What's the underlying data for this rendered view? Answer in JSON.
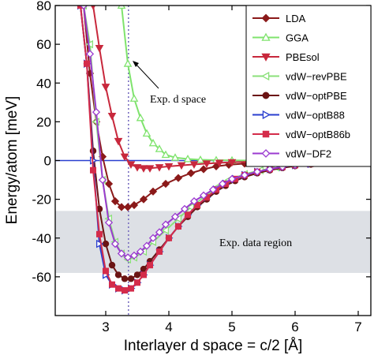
{
  "chart_data": {
    "type": "line",
    "xlabel": "Interlayer d space = c/2 [Å]",
    "ylabel": "Energy/atom [meV]",
    "xlim": [
      2.2,
      7.2
    ],
    "ylim": [
      -80,
      80
    ],
    "xticks": [
      "3",
      "4",
      "5",
      "6",
      "7"
    ],
    "xtick_values": [
      3,
      4,
      5,
      6,
      7
    ],
    "yticks": [
      "80",
      "60",
      "40",
      "20",
      "0",
      "-20",
      "-40",
      "-60"
    ],
    "ytick_values": [
      80,
      60,
      40,
      20,
      0,
      -20,
      -40,
      -60
    ],
    "grid": false,
    "legend_position": "top-right",
    "exp_d_space": 3.36,
    "exp_region": [
      -58,
      -26
    ],
    "annotations": {
      "exp_d_space_label": "Exp. d space",
      "exp_region_label": "Exp. data region"
    },
    "series": [
      {
        "name": "LDA",
        "color": "#8b1a1a",
        "marker": "diamond",
        "x": [
          2.65,
          2.75,
          2.85,
          2.95,
          3.05,
          3.15,
          3.25,
          3.35,
          3.45,
          3.6,
          3.75,
          3.95,
          4.15,
          4.35,
          4.55,
          4.75,
          4.95,
          5.2,
          5.45,
          5.7,
          5.95,
          6.2,
          6.45,
          6.7,
          6.95,
          7.15
        ],
        "y": [
          80,
          45,
          20,
          2,
          -12,
          -21,
          -24,
          -24,
          -23,
          -20,
          -16,
          -12,
          -9,
          -6.5,
          -4.5,
          -3,
          -2.2,
          -1.6,
          -1.1,
          -0.8,
          -0.5,
          -0.3,
          -0.2,
          -0.1,
          -0.05,
          0
        ]
      },
      {
        "name": "GGA",
        "color": "#7fe36d",
        "marker": "triangle-up",
        "x": [
          3.25,
          3.35,
          3.45,
          3.55,
          3.65,
          3.75,
          3.85,
          3.95,
          4.1,
          4.3,
          4.5,
          4.75,
          5.0,
          5.3,
          5.6,
          6.0,
          6.4,
          6.8,
          7.15
        ],
        "y": [
          80,
          50,
          32,
          22,
          14,
          9,
          6,
          3,
          1.5,
          0.8,
          0.4,
          0.2,
          0.1,
          0,
          0,
          0,
          0,
          0,
          0
        ]
      },
      {
        "name": "PBEsol",
        "color": "#c8283c",
        "marker": "triangle-down",
        "x": [
          2.8,
          2.9,
          3.0,
          3.1,
          3.2,
          3.3,
          3.4,
          3.5,
          3.6,
          3.7,
          3.85,
          4.0,
          4.2,
          4.4,
          4.6,
          4.8,
          5.0,
          5.3,
          5.6,
          6.0,
          6.4,
          6.8,
          7.15
        ],
        "y": [
          80,
          58,
          38,
          23,
          10,
          2,
          -2,
          -3.5,
          -4,
          -4,
          -3.5,
          -3,
          -2.5,
          -2,
          -1.6,
          -1.2,
          -0.9,
          -0.6,
          -0.4,
          -0.2,
          -0.1,
          0,
          0
        ]
      },
      {
        "name": "vdW−revPBE",
        "color": "#8be07a",
        "marker": "triangle-left",
        "x": [
          2.65,
          2.75,
          2.85,
          2.95,
          3.05,
          3.15,
          3.25,
          3.35,
          3.45,
          3.6,
          3.75,
          3.95,
          4.15,
          4.35,
          4.55,
          4.75,
          4.95,
          5.2,
          5.45,
          5.7,
          5.95,
          6.2,
          6.45,
          6.7,
          6.95,
          7.15
        ],
        "y": [
          80,
          60,
          20,
          -10,
          -30,
          -42,
          -48,
          -51,
          -50,
          -47,
          -42,
          -36,
          -30,
          -24,
          -19,
          -14,
          -10,
          -7,
          -5,
          -3.5,
          -2.5,
          -1.5,
          -1,
          -0.5,
          -0.3,
          0
        ]
      },
      {
        "name": "vdW−optPBE",
        "color": "#6b1414",
        "marker": "circle",
        "x": [
          2.6,
          2.7,
          2.8,
          2.9,
          3.0,
          3.1,
          3.2,
          3.3,
          3.4,
          3.5,
          3.6,
          3.7,
          3.85,
          4.0,
          4.15,
          4.3,
          4.45,
          4.6,
          4.75,
          4.9,
          5.05,
          5.2,
          5.4,
          5.6,
          5.8,
          6.0,
          6.25,
          6.5,
          6.75,
          7.0,
          7.15
        ],
        "y": [
          80,
          50,
          5,
          -25,
          -43,
          -54,
          -59,
          -61,
          -61,
          -59,
          -56,
          -52,
          -46,
          -40,
          -34,
          -29,
          -24,
          -20,
          -16,
          -13,
          -10.5,
          -8.5,
          -6.5,
          -5,
          -3.8,
          -2.8,
          -2,
          -1.4,
          -0.9,
          -0.5,
          -0.2
        ]
      },
      {
        "name": "vdW−optB88",
        "color": "#2a3fcf",
        "marker": "triangle-right",
        "x": [
          2.6,
          2.7,
          2.8,
          2.9,
          3.0,
          3.1,
          3.2,
          3.3,
          3.4,
          3.5,
          3.6,
          3.7,
          3.85,
          4.0,
          4.15,
          4.3,
          4.45,
          4.6,
          4.75,
          4.9,
          5.05,
          5.2,
          5.4,
          5.6,
          5.8,
          6.0,
          6.25,
          6.5,
          6.75,
          7.0,
          7.15
        ],
        "y": [
          80,
          50,
          0,
          -43,
          -59,
          -64,
          -66,
          -67,
          -66,
          -63,
          -59,
          -54,
          -47,
          -40,
          -34,
          -28,
          -23,
          -19,
          -15,
          -12,
          -9.5,
          -7.5,
          -5.8,
          -4.4,
          -3.3,
          -2.4,
          -1.7,
          -1.1,
          -0.7,
          -0.4,
          -0.2
        ]
      },
      {
        "name": "vdW−optB86b",
        "color": "#d42c4a",
        "marker": "square",
        "x": [
          2.6,
          2.7,
          2.8,
          2.9,
          3.0,
          3.1,
          3.2,
          3.3,
          3.4,
          3.5,
          3.6,
          3.7,
          3.85,
          4.0,
          4.15,
          4.3,
          4.45,
          4.6,
          4.75,
          4.9,
          5.05,
          5.2,
          5.4,
          5.6,
          5.8,
          6.0,
          6.25,
          6.5,
          6.75,
          7.0,
          7.15
        ],
        "y": [
          80,
          50,
          -5,
          -38,
          -57,
          -64,
          -66,
          -67,
          -66,
          -63,
          -59,
          -54,
          -47,
          -40,
          -34,
          -28,
          -23,
          -19,
          -15,
          -12,
          -9.5,
          -7.5,
          -5.8,
          -4.4,
          -3.3,
          -2.4,
          -1.7,
          -1.1,
          -0.7,
          -0.4,
          -0.2
        ]
      },
      {
        "name": "vdW−DF2",
        "color": "#9b3ad0",
        "marker": "diamond-open",
        "x": [
          2.65,
          2.75,
          2.85,
          2.95,
          3.05,
          3.15,
          3.25,
          3.35,
          3.45,
          3.55,
          3.65,
          3.75,
          3.85,
          3.95,
          4.1,
          4.25,
          4.4,
          4.55,
          4.7,
          4.85,
          5.0,
          5.2,
          5.4,
          5.6,
          5.8,
          6.0,
          6.2,
          6.4,
          6.6,
          6.8,
          7.0,
          7.15
        ],
        "y": [
          80,
          55,
          25,
          -10,
          -32,
          -43,
          -48,
          -50,
          -49,
          -47,
          -44,
          -40,
          -37,
          -33,
          -29,
          -25,
          -21,
          -18,
          -15,
          -12,
          -9.5,
          -7.5,
          -5.8,
          -4.4,
          -3.3,
          -2.4,
          -1.7,
          -1.1,
          -0.7,
          -0.4,
          -0.2,
          -0.1
        ]
      }
    ]
  },
  "colors": {
    "exp_region_fill": "#dde0e5",
    "exp_line": "#7a6fc0",
    "zero_line": "#2a3fcf"
  }
}
